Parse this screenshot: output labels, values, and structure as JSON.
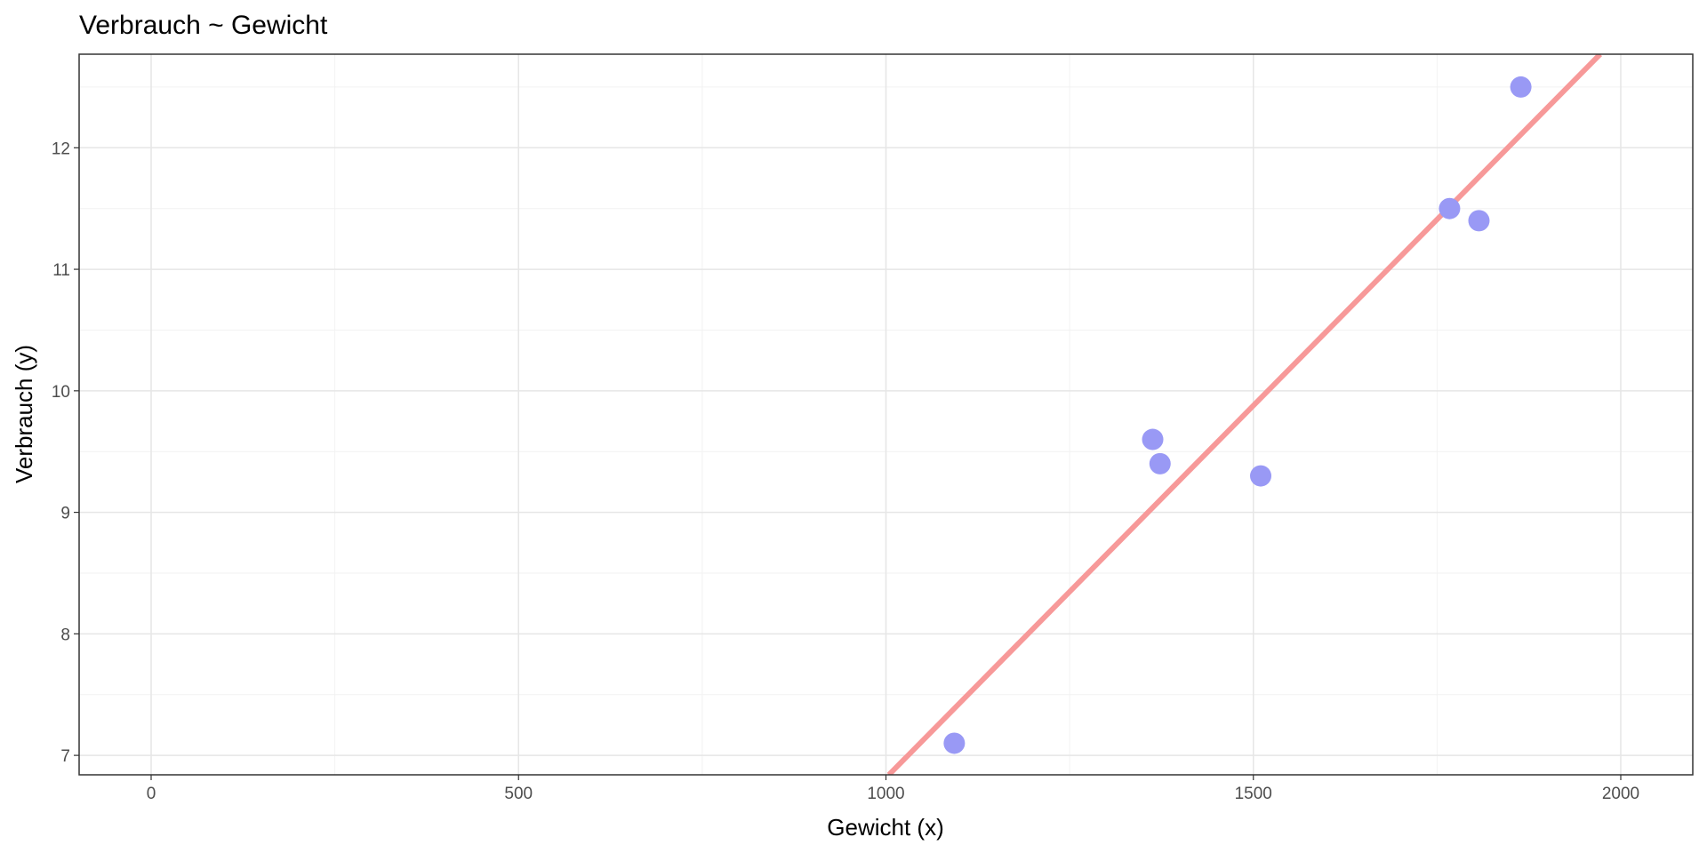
{
  "chart_data": {
    "type": "scatter",
    "title": "Verbrauch ~ Gewicht",
    "x_label": "Gewicht (x)",
    "y_label": "Verbrauch (y)",
    "series": [
      {
        "color": "#9999f5",
        "x": [
          1093,
          1363,
          1373,
          1510,
          1767,
          1807,
          1864
        ],
        "values": [
          7.1,
          9.6,
          9.4,
          9.3,
          11.5,
          11.4,
          12.5
        ]
      }
    ],
    "fit": {
      "color": "#f79999",
      "x": [
        1004,
        1972
      ],
      "values": [
        6.84,
        12.77
      ]
    },
    "xlim": [
      -98,
      2098
    ],
    "ylim": [
      6.84,
      12.77
    ],
    "xticks": [
      0,
      500,
      1000,
      1500,
      2000
    ],
    "yticks": [
      7,
      8,
      9,
      10,
      11,
      12
    ],
    "x_minor_grid": [
      250,
      750,
      1250,
      1750
    ],
    "y_minor_grid": [
      7.5,
      8.5,
      9.5,
      10.5,
      11.5,
      12.5
    ],
    "grid": true
  }
}
